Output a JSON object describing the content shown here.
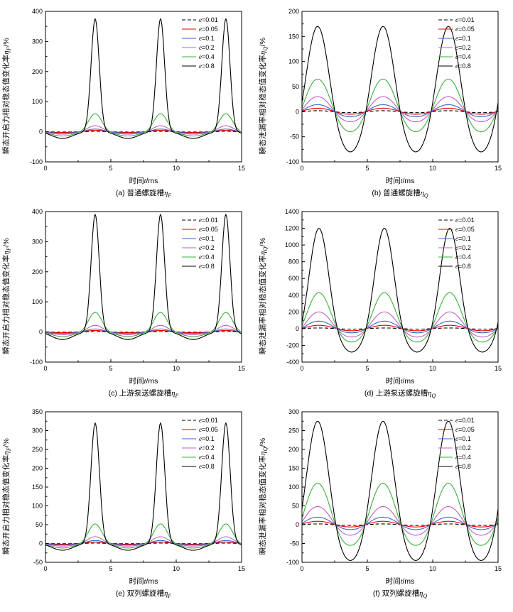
{
  "figure": {
    "background": "#ffffff"
  },
  "chart_data": [
    {
      "id": "a",
      "type": "line",
      "caption": {
        "pre": "(a) 普通螺旋槽",
        "var": "η",
        "sub": "F"
      },
      "y_label": {
        "pre": "瞬态开启力相对稳态值变化率",
        "var": "η",
        "sub": "F",
        "suffix": "/%"
      },
      "x_label": {
        "pre": "时间",
        "var": "t",
        "suffix": "/ms"
      },
      "x": {
        "min": 0,
        "max": 15,
        "majors": [
          0,
          5,
          10,
          15
        ],
        "minor_step": 2.5
      },
      "y": {
        "min": -100,
        "max": 400,
        "step": 100
      },
      "period_ms": 5,
      "peak_t": 3.8,
      "legend_position": "top-right",
      "series": [
        {
          "label_var": "e",
          "label_val": "=0.01",
          "color": "#000000",
          "dash": true,
          "peak": 1.5,
          "dip": -0.8,
          "p": 3,
          "q": 1.5
        },
        {
          "label_var": "e",
          "label_val": "=0.05",
          "color": "#e60000",
          "dash": false,
          "peak": 5,
          "dip": -2.5,
          "p": 3,
          "q": 1.5
        },
        {
          "label_var": "e",
          "label_val": "=0.1",
          "color": "#3a64c8",
          "dash": false,
          "peak": 9,
          "dip": -4.5,
          "p": 3.5,
          "q": 1.5
        },
        {
          "label_var": "e",
          "label_val": "=0.2",
          "color": "#c060c0",
          "dash": false,
          "peak": 20,
          "dip": -8,
          "p": 4,
          "q": 1.6
        },
        {
          "label_var": "e",
          "label_val": "=0.4",
          "color": "#3ab03a",
          "dash": false,
          "peak": 60,
          "dip": -14,
          "p": 5,
          "q": 1.8
        },
        {
          "label_var": "e",
          "label_val": "=0.8",
          "color": "#000000",
          "dash": false,
          "peak": 375,
          "dip": -22,
          "p": 13,
          "q": 2
        }
      ]
    },
    {
      "id": "b",
      "type": "line",
      "caption": {
        "pre": "(b) 普通螺旋槽",
        "var": "η",
        "sub": "Q"
      },
      "y_label": {
        "pre": "瞬态泄漏率相对稳态值变化率",
        "var": "η",
        "sub": "Q",
        "suffix": "/%"
      },
      "x_label": {
        "pre": "时间",
        "var": "t",
        "suffix": "/ms"
      },
      "x": {
        "min": 0,
        "max": 15,
        "majors": [
          0,
          5,
          10,
          15
        ],
        "minor_step": 2.5
      },
      "y": {
        "min": -100,
        "max": 200,
        "step": 50
      },
      "period_ms": 5,
      "peak_t": 1.2,
      "legend_position": "top-right",
      "series": [
        {
          "label_var": "e",
          "label_val": "=0.01",
          "color": "#000000",
          "dash": true,
          "peak": 2,
          "dip": -2,
          "p": 1.2,
          "q": 1.2
        },
        {
          "label_var": "e",
          "label_val": "=0.05",
          "color": "#e60000",
          "dash": false,
          "peak": 7,
          "dip": -5,
          "p": 1.3,
          "q": 1.2
        },
        {
          "label_var": "e",
          "label_val": "=0.1",
          "color": "#3a64c8",
          "dash": false,
          "peak": 14,
          "dip": -10,
          "p": 1.4,
          "q": 1.3
        },
        {
          "label_var": "e",
          "label_val": "=0.2",
          "color": "#c060c0",
          "dash": false,
          "peak": 30,
          "dip": -20,
          "p": 1.6,
          "q": 1.4
        },
        {
          "label_var": "e",
          "label_val": "=0.4",
          "color": "#3ab03a",
          "dash": false,
          "peak": 65,
          "dip": -40,
          "p": 1.8,
          "q": 1.5
        },
        {
          "label_var": "e",
          "label_val": "=0.8",
          "color": "#000000",
          "dash": false,
          "peak": 170,
          "dip": -80,
          "p": 2.2,
          "q": 1.6
        }
      ]
    },
    {
      "id": "c",
      "type": "line",
      "caption": {
        "pre": "(c) 上游泵送螺旋槽",
        "var": "η",
        "sub": "F"
      },
      "y_label": {
        "pre": "瞬态开启力相对稳态值变化率",
        "var": "η",
        "sub": "F",
        "suffix": "/%"
      },
      "x_label": {
        "pre": "时间",
        "var": "t",
        "suffix": "/ms"
      },
      "x": {
        "min": 0,
        "max": 15,
        "majors": [
          0,
          5,
          10,
          15
        ],
        "minor_step": 2.5
      },
      "y": {
        "min": -100,
        "max": 400,
        "step": 100
      },
      "period_ms": 5,
      "peak_t": 3.8,
      "legend_position": "top-right",
      "series": [
        {
          "label_var": "e",
          "label_val": "=0.01",
          "color": "#000000",
          "dash": true,
          "peak": 1.5,
          "dip": -0.8,
          "p": 3,
          "q": 1.5
        },
        {
          "label_var": "e",
          "label_val": "=0.05",
          "color": "#e60000",
          "dash": false,
          "peak": 5,
          "dip": -2.5,
          "p": 3,
          "q": 1.5
        },
        {
          "label_var": "e",
          "label_val": "=0.1",
          "color": "#3a64c8",
          "dash": false,
          "peak": 10,
          "dip": -5,
          "p": 3.5,
          "q": 1.5
        },
        {
          "label_var": "e",
          "label_val": "=0.2",
          "color": "#c060c0",
          "dash": false,
          "peak": 22,
          "dip": -9,
          "p": 4,
          "q": 1.6
        },
        {
          "label_var": "e",
          "label_val": "=0.4",
          "color": "#3ab03a",
          "dash": false,
          "peak": 65,
          "dip": -15,
          "p": 5,
          "q": 1.8
        },
        {
          "label_var": "e",
          "label_val": "=0.8",
          "color": "#000000",
          "dash": false,
          "peak": 390,
          "dip": -25,
          "p": 13,
          "q": 2
        }
      ]
    },
    {
      "id": "d",
      "type": "line",
      "caption": {
        "pre": "(d) 上游泵送螺旋槽",
        "var": "η",
        "sub": "Q"
      },
      "y_label": {
        "pre": "瞬态泄漏率相对稳态值变化率",
        "var": "η",
        "sub": "Q",
        "suffix": "/%"
      },
      "x_label": {
        "pre": "时间",
        "var": "t",
        "suffix": "/ms"
      },
      "x": {
        "min": 0,
        "max": 15,
        "majors": [
          0,
          5,
          10,
          15
        ],
        "minor_step": 2.5
      },
      "y": {
        "min": -400,
        "max": 1400,
        "step": 200
      },
      "period_ms": 5,
      "peak_t": 1.3,
      "legend_position": "top-right",
      "series": [
        {
          "label_var": "e",
          "label_val": "=0.01",
          "color": "#000000",
          "dash": true,
          "peak": 8,
          "dip": -6,
          "p": 1.2,
          "q": 1.2
        },
        {
          "label_var": "e",
          "label_val": "=0.05",
          "color": "#e60000",
          "dash": false,
          "peak": 40,
          "dip": -25,
          "p": 1.4,
          "q": 1.3
        },
        {
          "label_var": "e",
          "label_val": "=0.1",
          "color": "#3a64c8",
          "dash": false,
          "peak": 90,
          "dip": -50,
          "p": 1.6,
          "q": 1.4
        },
        {
          "label_var": "e",
          "label_val": "=0.2",
          "color": "#c060c0",
          "dash": false,
          "peak": 200,
          "dip": -100,
          "p": 1.8,
          "q": 1.5
        },
        {
          "label_var": "e",
          "label_val": "=0.4",
          "color": "#3ab03a",
          "dash": false,
          "peak": 430,
          "dip": -160,
          "p": 2,
          "q": 1.6
        },
        {
          "label_var": "e",
          "label_val": "=0.8",
          "color": "#000000",
          "dash": false,
          "peak": 1200,
          "dip": -280,
          "p": 2.6,
          "q": 1.8
        }
      ]
    },
    {
      "id": "e",
      "type": "line",
      "caption": {
        "pre": "(e) 双列螺旋槽",
        "var": "η",
        "sub": "F"
      },
      "y_label": {
        "pre": "瞬态开启力相对稳态值变化率",
        "var": "η",
        "sub": "F",
        "suffix": "/%"
      },
      "x_label": {
        "pre": "时间",
        "var": "t",
        "suffix": "/ms"
      },
      "x": {
        "min": 0,
        "max": 15,
        "majors": [
          0,
          5,
          10,
          15
        ],
        "minor_step": 2.5
      },
      "y": {
        "min": -50,
        "max": 350,
        "step": 50
      },
      "period_ms": 5,
      "peak_t": 3.8,
      "legend_position": "top-right",
      "series": [
        {
          "label_var": "e",
          "label_val": "=0.01",
          "color": "#000000",
          "dash": true,
          "peak": 1,
          "dip": -0.6,
          "p": 3,
          "q": 1.5
        },
        {
          "label_var": "e",
          "label_val": "=0.05",
          "color": "#e60000",
          "dash": false,
          "peak": 4,
          "dip": -2,
          "p": 3,
          "q": 1.5
        },
        {
          "label_var": "e",
          "label_val": "=0.1",
          "color": "#3a64c8",
          "dash": false,
          "peak": 8,
          "dip": -4,
          "p": 3.5,
          "q": 1.5
        },
        {
          "label_var": "e",
          "label_val": "=0.2",
          "color": "#c060c0",
          "dash": false,
          "peak": 18,
          "dip": -7,
          "p": 4,
          "q": 1.6
        },
        {
          "label_var": "e",
          "label_val": "=0.4",
          "color": "#3ab03a",
          "dash": false,
          "peak": 52,
          "dip": -12,
          "p": 5,
          "q": 1.8
        },
        {
          "label_var": "e",
          "label_val": "=0.8",
          "color": "#000000",
          "dash": false,
          "peak": 320,
          "dip": -18,
          "p": 12,
          "q": 2
        }
      ]
    },
    {
      "id": "f",
      "type": "line",
      "caption": {
        "pre": "(f) 双列螺旋槽",
        "var": "η",
        "sub": "Q"
      },
      "y_label": {
        "pre": "瞬态泄漏率相对稳态值变化率",
        "var": "η",
        "sub": "Q",
        "suffix": "/%"
      },
      "x_label": {
        "pre": "时间",
        "var": "t",
        "suffix": "/ms"
      },
      "x": {
        "min": 0,
        "max": 15,
        "majors": [
          0,
          5,
          10,
          15
        ],
        "minor_step": 2.5
      },
      "y": {
        "min": -100,
        "max": 300,
        "step": 50
      },
      "period_ms": 5,
      "peak_t": 1.2,
      "legend_position": "top-right",
      "series": [
        {
          "label_var": "e",
          "label_val": "=0.01",
          "color": "#000000",
          "dash": true,
          "peak": 2,
          "dip": -2,
          "p": 1.2,
          "q": 1.2
        },
        {
          "label_var": "e",
          "label_val": "=0.05",
          "color": "#e60000",
          "dash": false,
          "peak": 9,
          "dip": -6,
          "p": 1.3,
          "q": 1.2
        },
        {
          "label_var": "e",
          "label_val": "=0.1",
          "color": "#3a64c8",
          "dash": false,
          "peak": 20,
          "dip": -13,
          "p": 1.4,
          "q": 1.3
        },
        {
          "label_var": "e",
          "label_val": "=0.2",
          "color": "#c060c0",
          "dash": false,
          "peak": 48,
          "dip": -28,
          "p": 1.6,
          "q": 1.4
        },
        {
          "label_var": "e",
          "label_val": "=0.4",
          "color": "#3ab03a",
          "dash": false,
          "peak": 110,
          "dip": -55,
          "p": 1.8,
          "q": 1.5
        },
        {
          "label_var": "e",
          "label_val": "=0.8",
          "color": "#000000",
          "dash": false,
          "peak": 275,
          "dip": -95,
          "p": 2.2,
          "q": 1.7
        }
      ]
    }
  ]
}
